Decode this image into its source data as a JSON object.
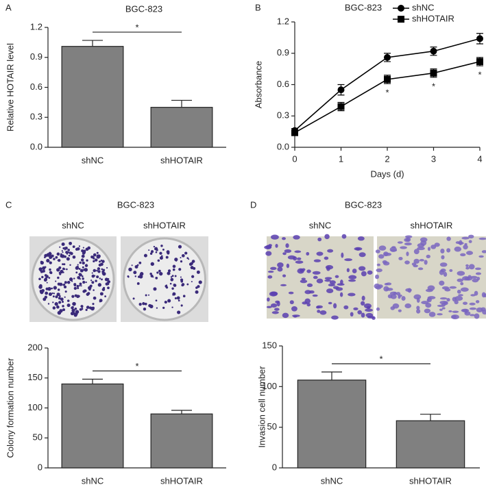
{
  "chart_data": [
    {
      "type": "bar",
      "panel": "A",
      "title": "BGC-823",
      "ylabel": "Relative HOTAIR level",
      "categories": [
        "shNC",
        "shHOTAIR"
      ],
      "values": [
        1.01,
        0.4
      ],
      "errors": [
        0.06,
        0.07
      ],
      "color": "#808080",
      "ylim": [
        0,
        1.2
      ],
      "yticks": [
        {
          "value": 0,
          "label": "0.0"
        },
        0.3,
        0.6,
        0.9,
        1.2
      ],
      "annotations": [
        "*"
      ]
    },
    {
      "type": "line",
      "panel": "B",
      "title": "BGC-823",
      "xlabel": "Days (d)",
      "ylabel": "Absorbance",
      "x": [
        0,
        1,
        2,
        3,
        4
      ],
      "xlim": [
        0,
        4
      ],
      "xticks": [
        0,
        1,
        2,
        3,
        4
      ],
      "ylim": [
        0,
        1.2
      ],
      "yticks": [
        {
          "value": 0,
          "label": "0.0"
        },
        0.3,
        0.6,
        0.9,
        1.2
      ],
      "legend": "top-right",
      "series": [
        {
          "name": "shNC",
          "color": "#000000",
          "marker": "circle",
          "values": [
            0.16,
            0.55,
            0.86,
            0.92,
            1.04
          ],
          "errors": [
            0.02,
            0.05,
            0.04,
            0.04,
            0.05
          ]
        },
        {
          "name": "shHOTAIR",
          "color": "#000000",
          "marker": "square",
          "values": [
            0.14,
            0.39,
            0.65,
            0.71,
            0.82
          ],
          "errors": [
            0.02,
            0.04,
            0.04,
            0.04,
            0.04
          ]
        }
      ],
      "annotations": [
        {
          "text": "*",
          "x": 2
        },
        {
          "text": "*",
          "x": 3
        },
        {
          "text": "*",
          "x": 4
        }
      ]
    },
    {
      "type": "bar",
      "panel": "C",
      "title": "BGC-823",
      "image_labels": [
        "shNC",
        "shHOTAIR"
      ],
      "ylabel": "Colony formation number",
      "categories": [
        "shNC",
        "shHOTAIR"
      ],
      "values": [
        140,
        90
      ],
      "errors": [
        8,
        6
      ],
      "color": "#808080",
      "ylim": [
        0,
        200
      ],
      "yticks": [
        0,
        50,
        100,
        150,
        200
      ],
      "annotations": [
        "*"
      ]
    },
    {
      "type": "bar",
      "panel": "D",
      "title": "BGC-823",
      "image_labels": [
        "shNC",
        "shHOTAIR"
      ],
      "ylabel": "Invasion cell number",
      "categories": [
        "shNC",
        "shHOTAIR"
      ],
      "values": [
        108,
        58
      ],
      "errors": [
        10,
        8
      ],
      "color": "#808080",
      "ylim": [
        0,
        150
      ],
      "yticks": [
        0,
        50,
        100,
        150
      ],
      "annotations": [
        "*"
      ]
    }
  ]
}
